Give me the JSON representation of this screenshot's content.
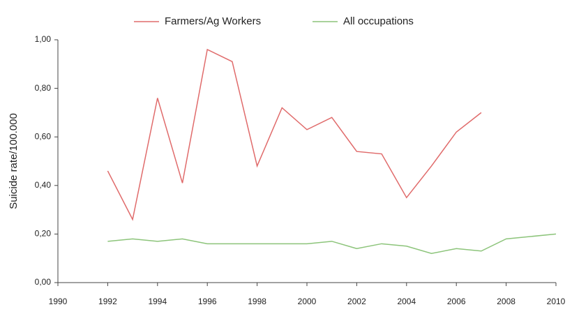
{
  "chart_data": {
    "type": "line",
    "y_label": "Suicide rate/100.000",
    "x": [
      1992,
      1993,
      1994,
      1995,
      1996,
      1997,
      1998,
      1999,
      2000,
      2001,
      2002,
      2003,
      2004,
      2005,
      2006,
      2007,
      2008,
      2009,
      2010
    ],
    "series": [
      {
        "name": "Farmers/Ag Workers",
        "color": "#e06b6b",
        "values": [
          0.46,
          0.26,
          0.76,
          0.41,
          0.96,
          0.91,
          0.48,
          0.72,
          0.63,
          0.68,
          0.54,
          0.53,
          0.35,
          0.48,
          0.62,
          0.7,
          null,
          null,
          null
        ]
      },
      {
        "name": "All occupations",
        "color": "#8cc47a",
        "values": [
          0.17,
          0.18,
          0.17,
          0.18,
          0.16,
          0.16,
          0.16,
          0.16,
          0.16,
          0.17,
          0.14,
          0.16,
          0.15,
          0.12,
          0.14,
          0.13,
          0.18,
          0.19,
          0.2
        ]
      }
    ],
    "xlim": [
      1990,
      2010
    ],
    "xticks": [
      1990,
      1992,
      1994,
      1996,
      1998,
      2000,
      2002,
      2004,
      2006,
      2008,
      2010
    ],
    "ylim": [
      0,
      1
    ],
    "yticks": [
      {
        "value": 0,
        "label": "0,00"
      },
      {
        "value": 0.2,
        "label": "0,20"
      },
      {
        "value": 0.4,
        "label": "0,40"
      },
      {
        "value": 0.6,
        "label": "0,60"
      },
      {
        "value": 0.8,
        "label": "0,80"
      },
      {
        "value": 1,
        "label": "1,00"
      }
    ],
    "legend": "top"
  }
}
